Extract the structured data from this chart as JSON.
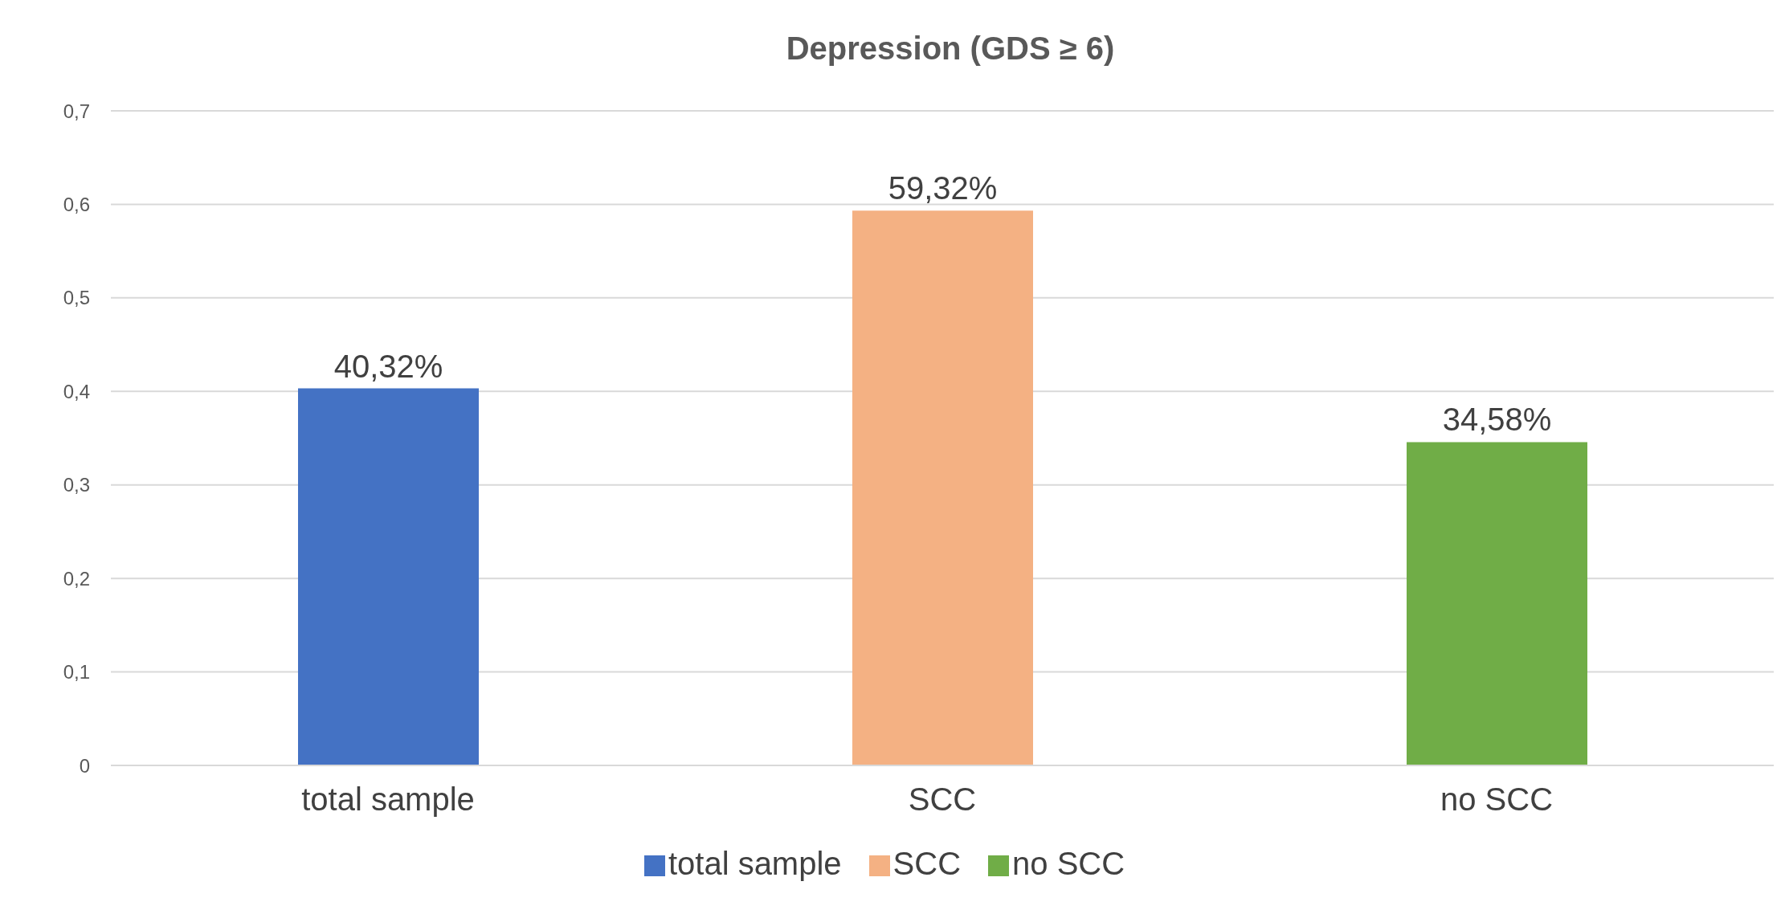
{
  "chart_data": {
    "type": "bar",
    "title": "Depression (GDS ≥ 6)",
    "categories": [
      "total sample",
      "SCC",
      "no SCC"
    ],
    "series": [
      {
        "name": "total sample",
        "color": "#4472c4",
        "values": [
          0.4032,
          null,
          null
        ],
        "value_labels": [
          "40,32%",
          null,
          null
        ]
      },
      {
        "name": "SCC",
        "color": "#f4b183",
        "values": [
          null,
          0.5932,
          null
        ],
        "value_labels": [
          null,
          "59,32%",
          null
        ]
      },
      {
        "name": "no SCC",
        "color": "#70ad47",
        "values": [
          null,
          null,
          0.3458
        ],
        "value_labels": [
          null,
          null,
          "34,58%"
        ]
      }
    ],
    "stacked": true,
    "ylim": [
      0,
      0.7
    ],
    "yticks": [
      {
        "value": 0,
        "label": "0"
      },
      {
        "value": 0.1,
        "label": "0,1"
      },
      {
        "value": 0.2,
        "label": "0,2"
      },
      {
        "value": 0.3,
        "label": "0,3"
      },
      {
        "value": 0.4,
        "label": "0,4"
      },
      {
        "value": 0.5,
        "label": "0,5"
      },
      {
        "value": 0.6,
        "label": "0,6"
      },
      {
        "value": 0.7,
        "label": "0,7"
      }
    ],
    "grid": "y",
    "legend": "bottom"
  }
}
